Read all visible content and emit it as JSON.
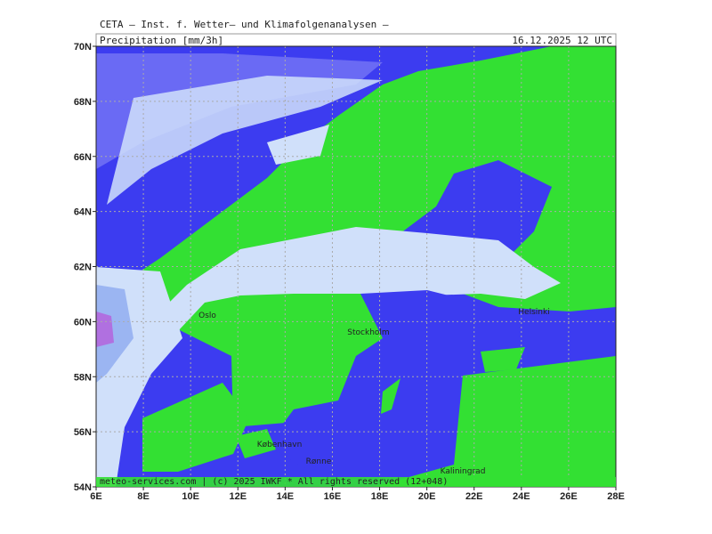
{
  "header": {
    "title": "CETA – Inst. f. Wetter– und Klimafolgenanalysen –",
    "subtitle": "Precipitation [mm/3h]",
    "datetime": "16.12.2025 12 UTC"
  },
  "axes": {
    "lat_labels": [
      "70N",
      "68N",
      "66N",
      "64N",
      "62N",
      "60N",
      "58N",
      "56N",
      "54N"
    ],
    "lon_labels": [
      "6E",
      "8E",
      "10E",
      "12E",
      "14E",
      "16E",
      "18E",
      "20E",
      "22E",
      "24E",
      "26E",
      "28E"
    ]
  },
  "cities": [
    {
      "label": "Oslo"
    },
    {
      "label": "Stockholm"
    },
    {
      "label": "Helsinki"
    },
    {
      "label": "København"
    },
    {
      "label": "Rønne"
    },
    {
      "label": "Kaliningrad"
    }
  ],
  "footer": "meteo-services.com | (c) 2025 IWKF * All rights reserved (12+048)"
}
